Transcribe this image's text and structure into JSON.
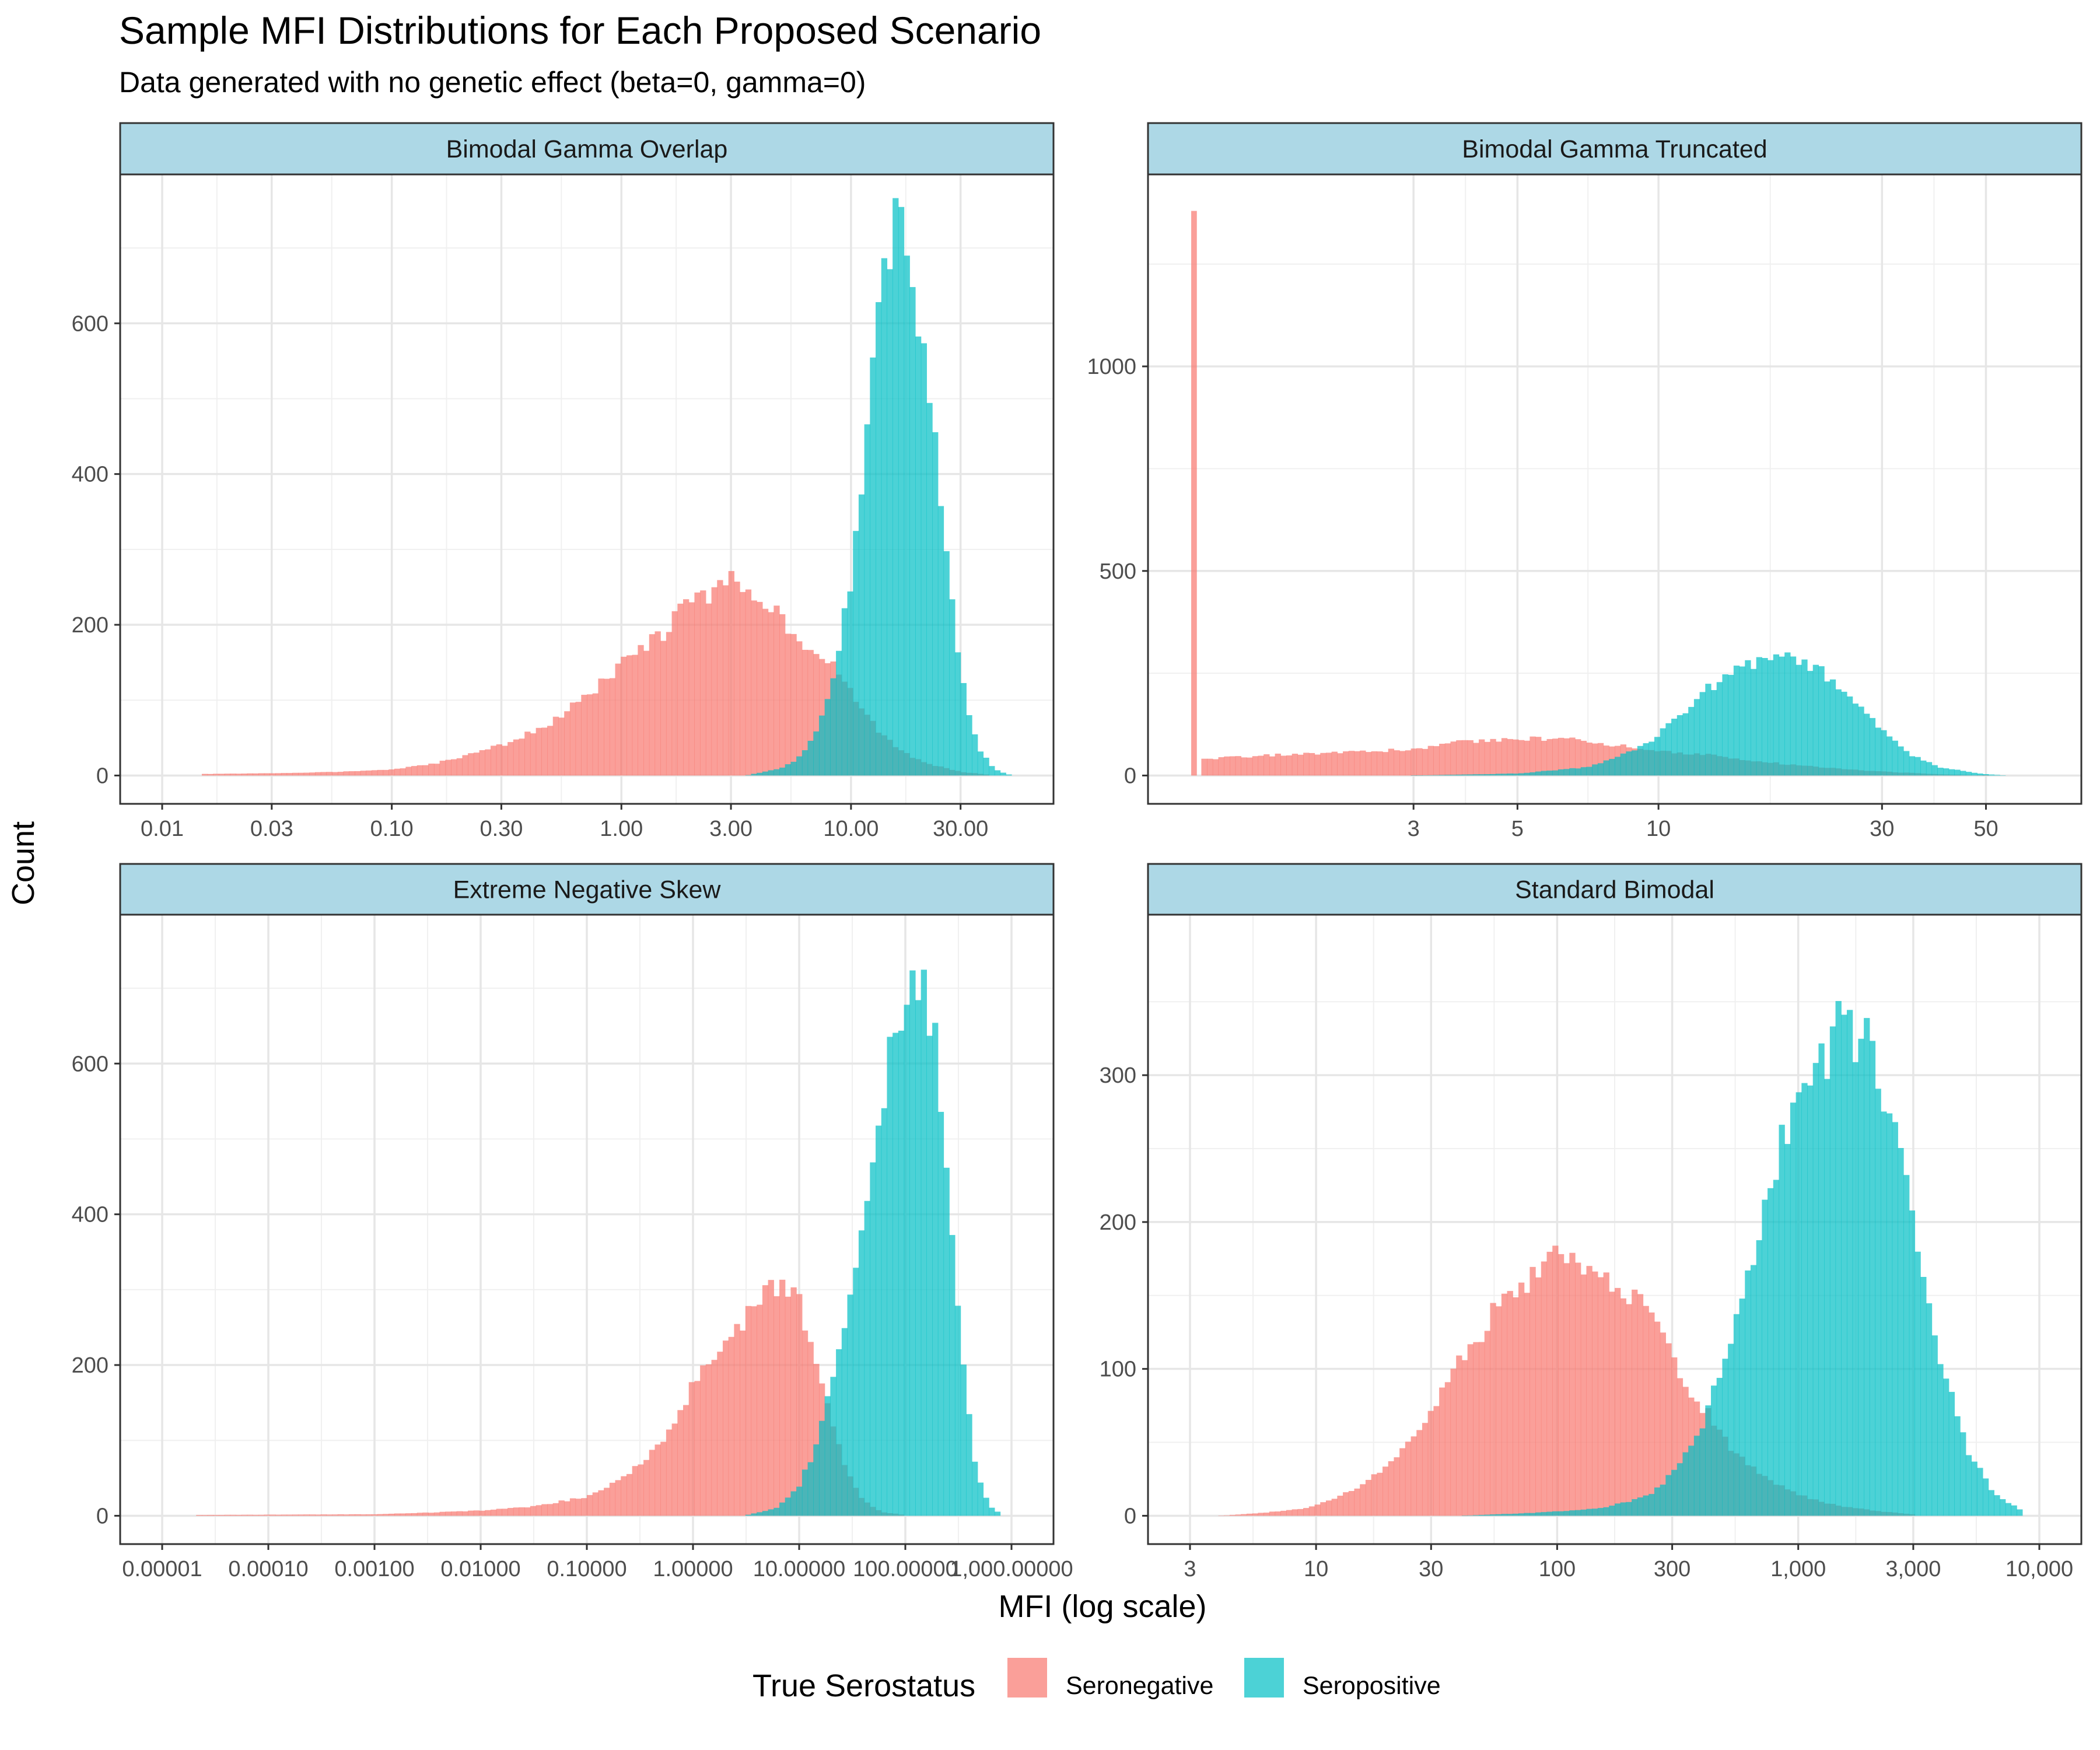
{
  "title": "Sample MFI Distributions for Each Proposed Scenario",
  "subtitle": "Data generated with no genetic effect (beta=0, gamma=0)",
  "xlabel": "MFI (log scale)",
  "ylabel": "Count",
  "legend": {
    "title": "True Serostatus",
    "position": "bottom",
    "items": [
      {
        "label": "Seronegative",
        "color": "#F8766D"
      },
      {
        "label": "Seropositive",
        "color": "#00BFC4"
      }
    ]
  },
  "colors": {
    "seronegative": "#F8766D",
    "seropositive": "#00BFC4",
    "strip_fill": "#ADD8E6"
  },
  "chart_data": [
    {
      "type": "histogram",
      "panel": "Bimodal Gamma Overlap",
      "x_scale": "log10",
      "xlim": [
        0.01,
        50
      ],
      "ylim": [
        0,
        760
      ],
      "x_ticks": [
        {
          "value": 0.01,
          "label": "0.01"
        },
        {
          "value": 0.03,
          "label": "0.03"
        },
        {
          "value": 0.1,
          "label": "0.10"
        },
        {
          "value": 0.3,
          "label": "0.30"
        },
        {
          "value": 1,
          "label": "1.00"
        },
        {
          "value": 3,
          "label": "3.00"
        },
        {
          "value": 10,
          "label": "10.00"
        },
        {
          "value": 30,
          "label": "30.00"
        }
      ],
      "y_ticks": [
        0,
        200,
        400,
        600
      ],
      "series": [
        {
          "name": "Seronegative",
          "points": [
            [
              0.015,
              2
            ],
            [
              0.03,
              3
            ],
            [
              0.06,
              5
            ],
            [
              0.1,
              8
            ],
            [
              0.15,
              15
            ],
            [
              0.2,
              25
            ],
            [
              0.3,
              40
            ],
            [
              0.5,
              70
            ],
            [
              0.7,
              105
            ],
            [
              1.0,
              145
            ],
            [
              1.5,
              190
            ],
            [
              2.0,
              230
            ],
            [
              3.0,
              255
            ],
            [
              4.0,
              245
            ],
            [
              5.0,
              210
            ],
            [
              6.5,
              170
            ],
            [
              8.0,
              150
            ],
            [
              10,
              110
            ],
            [
              13,
              60
            ],
            [
              17,
              30
            ],
            [
              22,
              15
            ],
            [
              30,
              5
            ],
            [
              40,
              1
            ]
          ]
        },
        {
          "name": "Seropositive",
          "points": [
            [
              3.5,
              0
            ],
            [
              5,
              10
            ],
            [
              6,
              25
            ],
            [
              7,
              60
            ],
            [
              8,
              110
            ],
            [
              9,
              180
            ],
            [
              10,
              270
            ],
            [
              11,
              380
            ],
            [
              12,
              500
            ],
            [
              13,
              600
            ],
            [
              14,
              680
            ],
            [
              15,
              730
            ],
            [
              17,
              720
            ],
            [
              19,
              640
            ],
            [
              22,
              500
            ],
            [
              25,
              350
            ],
            [
              28,
              200
            ],
            [
              32,
              90
            ],
            [
              36,
              35
            ],
            [
              42,
              8
            ],
            [
              50,
              0
            ]
          ]
        }
      ]
    },
    {
      "type": "histogram",
      "panel": "Bimodal Gamma Truncated",
      "x_scale": "log10",
      "xlim": [
        1,
        65
      ],
      "ylim": [
        0,
        1400
      ],
      "x_ticks": [
        {
          "value": 3,
          "label": "3"
        },
        {
          "value": 5,
          "label": "5"
        },
        {
          "value": 10,
          "label": "10"
        },
        {
          "value": 30,
          "label": "30"
        },
        {
          "value": 50,
          "label": "50"
        }
      ],
      "y_ticks": [
        {
          "value": 500,
          "label": "500"
        },
        {
          "value": 1000,
          "label": "1000"
        },
        {
          "value": 0,
          "label": "0"
        }
      ],
      "spike": {
        "x": 1.02,
        "count": 1380
      },
      "series": [
        {
          "name": "Seronegative",
          "points": [
            [
              1.05,
              40
            ],
            [
              1.5,
              50
            ],
            [
              2,
              55
            ],
            [
              3,
              65
            ],
            [
              4,
              85
            ],
            [
              5,
              90
            ],
            [
              6,
              90
            ],
            [
              7,
              85
            ],
            [
              8,
              75
            ],
            [
              10,
              60
            ],
            [
              13,
              50
            ],
            [
              16,
              35
            ],
            [
              20,
              25
            ],
            [
              25,
              15
            ],
            [
              32,
              8
            ],
            [
              40,
              3
            ],
            [
              50,
              0
            ]
          ]
        },
        {
          "name": "Seropositive",
          "points": [
            [
              3,
              0
            ],
            [
              5,
              5
            ],
            [
              7,
              20
            ],
            [
              8,
              40
            ],
            [
              9,
              65
            ],
            [
              10,
              100
            ],
            [
              11,
              140
            ],
            [
              12,
              180
            ],
            [
              13,
              220
            ],
            [
              15,
              260
            ],
            [
              17,
              280
            ],
            [
              19,
              290
            ],
            [
              21,
              275
            ],
            [
              23,
              240
            ],
            [
              26,
              180
            ],
            [
              30,
              110
            ],
            [
              34,
              55
            ],
            [
              40,
              20
            ],
            [
              48,
              5
            ],
            [
              55,
              0
            ]
          ]
        }
      ]
    },
    {
      "type": "histogram",
      "panel": "Extreme Negative Skew",
      "x_scale": "log10",
      "xlim": [
        1e-05,
        1000
      ],
      "ylim": [
        0,
        760
      ],
      "x_ticks": [
        {
          "value": 1e-05,
          "label": "0.00001"
        },
        {
          "value": 0.0001,
          "label": "0.00010"
        },
        {
          "value": 0.001,
          "label": "0.00100"
        },
        {
          "value": 0.01,
          "label": "0.01000"
        },
        {
          "value": 0.1,
          "label": "0.10000"
        },
        {
          "value": 1,
          "label": "1.00000"
        },
        {
          "value": 10,
          "label": "10.00000"
        },
        {
          "value": 100,
          "label": "100.00000"
        },
        {
          "value": 1000,
          "label": "1,000.00000"
        }
      ],
      "y_ticks": [
        0,
        200,
        400,
        600
      ],
      "series": [
        {
          "name": "Seronegative",
          "points": [
            [
              2e-05,
              1
            ],
            [
              0.001,
              2
            ],
            [
              0.003,
              4
            ],
            [
              0.01,
              7
            ],
            [
              0.03,
              12
            ],
            [
              0.1,
              25
            ],
            [
              0.2,
              45
            ],
            [
              0.4,
              80
            ],
            [
              0.7,
              130
            ],
            [
              1.0,
              170
            ],
            [
              2.0,
              225
            ],
            [
              3.0,
              260
            ],
            [
              5.0,
              290
            ],
            [
              7.0,
              310
            ],
            [
              10,
              275
            ],
            [
              14,
              200
            ],
            [
              20,
              130
            ],
            [
              28,
              60
            ],
            [
              40,
              20
            ],
            [
              60,
              5
            ],
            [
              100,
              1
            ]
          ]
        },
        {
          "name": "Seropositive",
          "points": [
            [
              3,
              0
            ],
            [
              6,
              10
            ],
            [
              10,
              40
            ],
            [
              15,
              100
            ],
            [
              20,
              180
            ],
            [
              25,
              230
            ],
            [
              30,
              280
            ],
            [
              40,
              380
            ],
            [
              50,
              490
            ],
            [
              70,
              620
            ],
            [
              100,
              710
            ],
            [
              130,
              720
            ],
            [
              170,
              680
            ],
            [
              220,
              560
            ],
            [
              280,
              380
            ],
            [
              350,
              200
            ],
            [
              450,
              70
            ],
            [
              600,
              15
            ],
            [
              800,
              2
            ]
          ]
        }
      ]
    },
    {
      "type": "histogram",
      "panel": "Standard Bimodal",
      "x_scale": "log10",
      "xlim": [
        3,
        10000
      ],
      "ylim": [
        0,
        390
      ],
      "x_ticks": [
        {
          "value": 3,
          "label": "3"
        },
        {
          "value": 10,
          "label": "10"
        },
        {
          "value": 30,
          "label": "30"
        },
        {
          "value": 100,
          "label": "100"
        },
        {
          "value": 300,
          "label": "300"
        },
        {
          "value": 1000,
          "label": "1,000"
        },
        {
          "value": 3000,
          "label": "3,000"
        },
        {
          "value": 10000,
          "label": "10,000"
        }
      ],
      "y_ticks": [
        0,
        100,
        200,
        300
      ],
      "series": [
        {
          "name": "Seronegative",
          "points": [
            [
              4,
              0
            ],
            [
              6,
              2
            ],
            [
              9,
              5
            ],
            [
              12,
              12
            ],
            [
              16,
              22
            ],
            [
              20,
              35
            ],
            [
              25,
              55
            ],
            [
              30,
              72
            ],
            [
              40,
              105
            ],
            [
              50,
              130
            ],
            [
              60,
              150
            ],
            [
              80,
              165
            ],
            [
              100,
              180
            ],
            [
              130,
              175
            ],
            [
              160,
              165
            ],
            [
              200,
              150
            ],
            [
              250,
              130
            ],
            [
              300,
              105
            ],
            [
              400,
              75
            ],
            [
              500,
              50
            ],
            [
              700,
              28
            ],
            [
              900,
              18
            ],
            [
              1200,
              10
            ],
            [
              1600,
              6
            ],
            [
              2200,
              3
            ],
            [
              3000,
              1
            ]
          ]
        },
        {
          "name": "Seropositive",
          "points": [
            [
              40,
              0
            ],
            [
              80,
              2
            ],
            [
              150,
              5
            ],
            [
              200,
              10
            ],
            [
              250,
              15
            ],
            [
              300,
              30
            ],
            [
              350,
              45
            ],
            [
              400,
              60
            ],
            [
              500,
              110
            ],
            [
              600,
              160
            ],
            [
              700,
              200
            ],
            [
              800,
              240
            ],
            [
              1000,
              280
            ],
            [
              1200,
              310
            ],
            [
              1500,
              330
            ],
            [
              1800,
              325
            ],
            [
              2200,
              300
            ],
            [
              2700,
              250
            ],
            [
              3200,
              180
            ],
            [
              4000,
              100
            ],
            [
              5000,
              45
            ],
            [
              6500,
              15
            ],
            [
              8500,
              3
            ]
          ]
        }
      ]
    }
  ]
}
